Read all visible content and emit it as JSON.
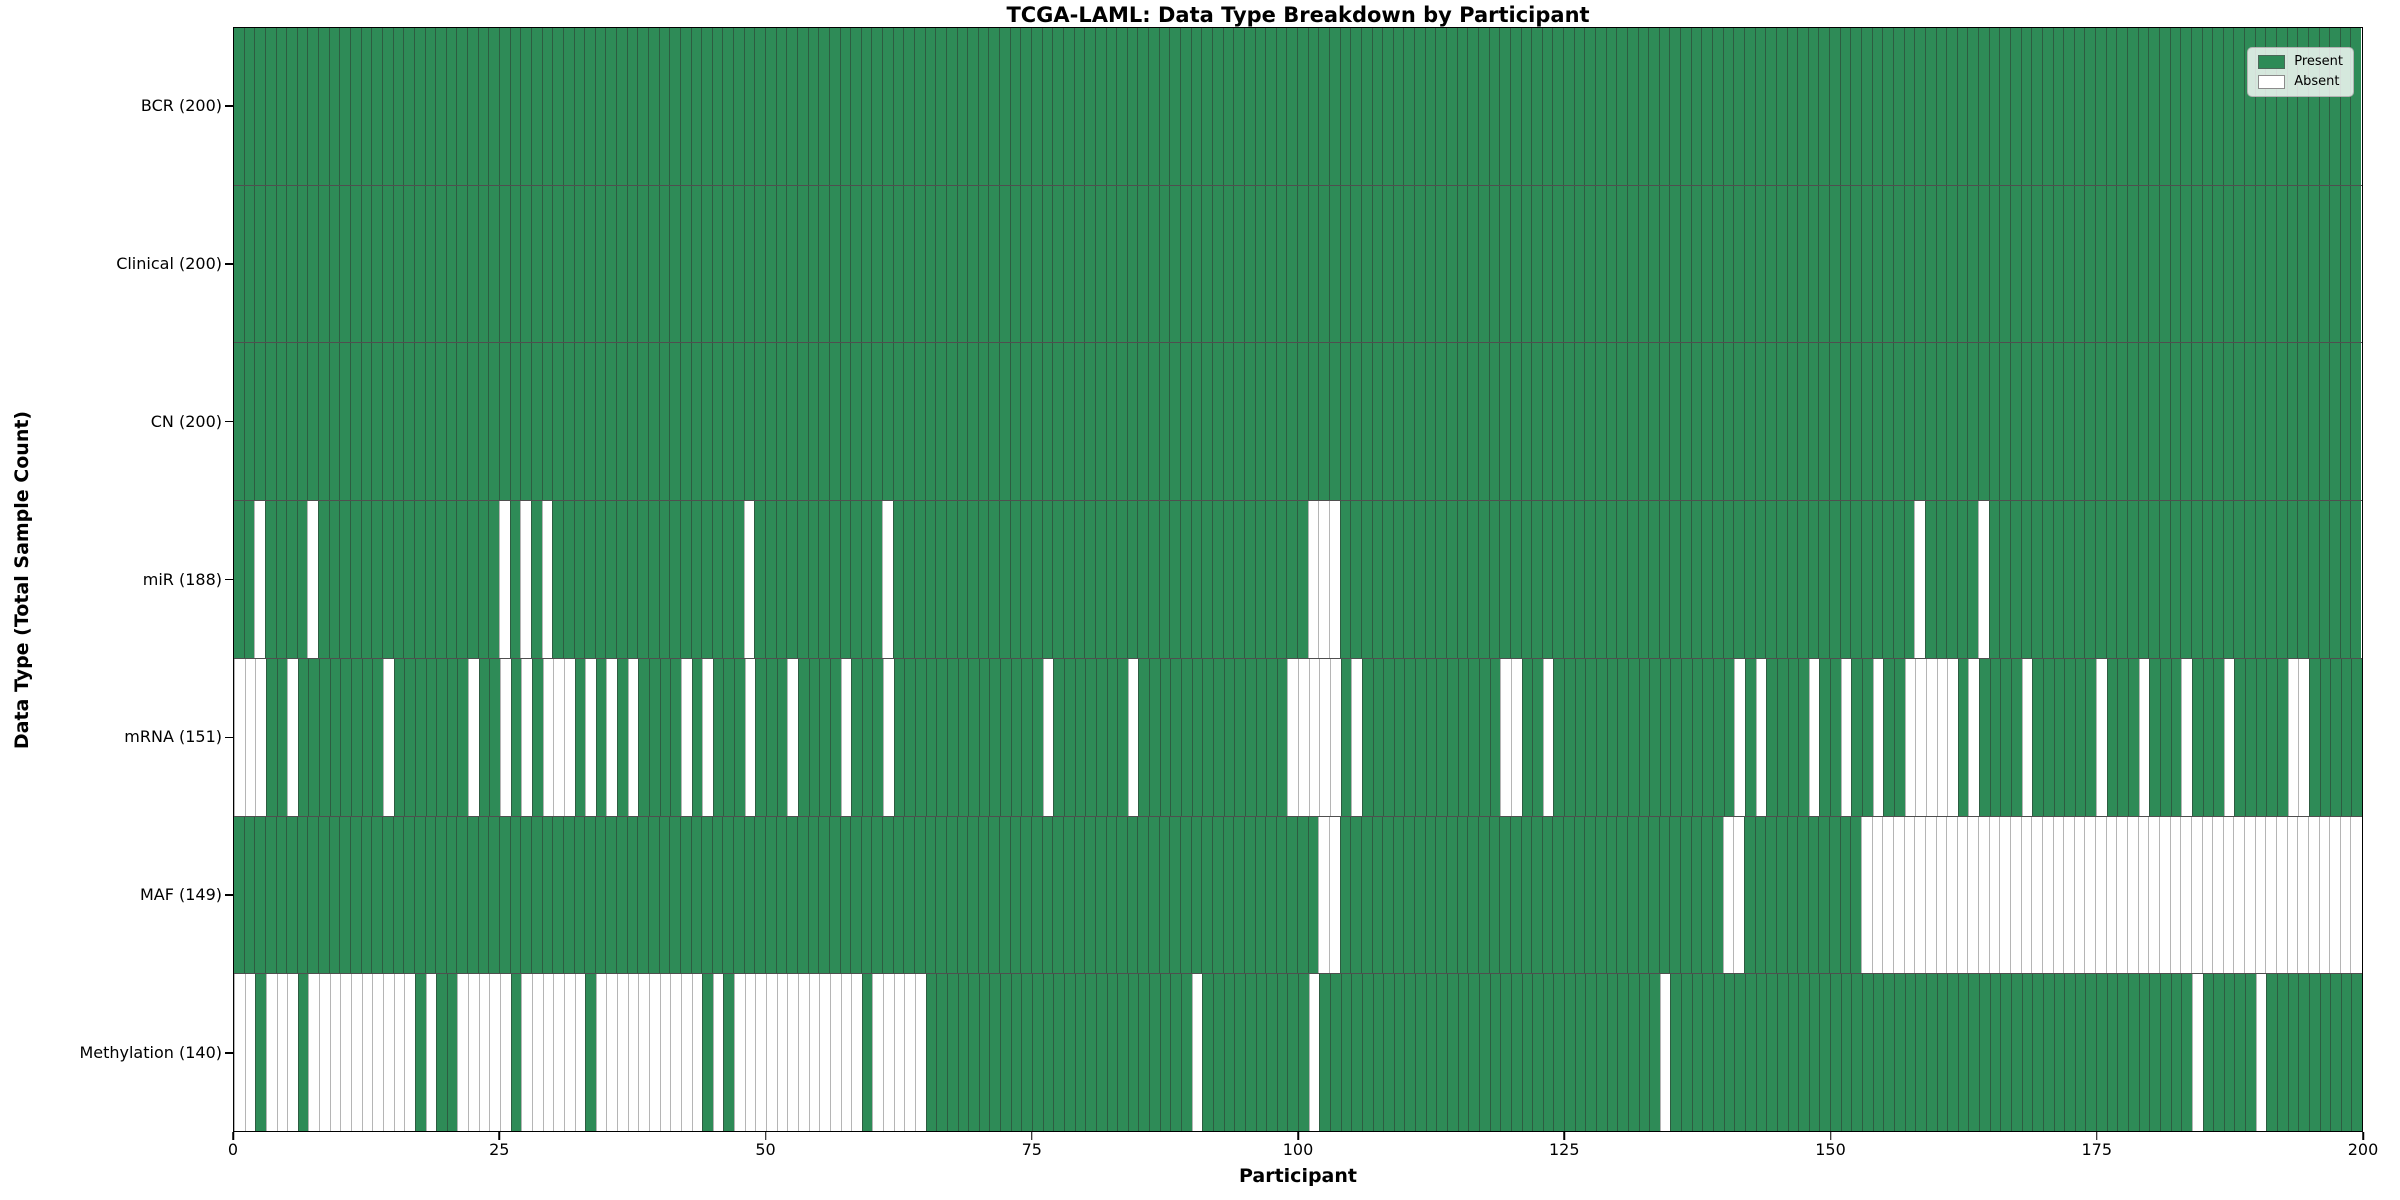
{
  "chart_data": {
    "type": "heatmap",
    "title": "TCGA-LAML: Data Type Breakdown by Participant",
    "xlabel": "Participant",
    "ylabel": "Data Type (Total Sample Count)",
    "n_participants": 200,
    "x_axis_range": [
      0,
      200
    ],
    "x_ticks": [
      0,
      25,
      50,
      75,
      100,
      125,
      150,
      175,
      200
    ],
    "grid": "cell-borders",
    "colors": {
      "present": "#2e8b57",
      "absent": "#ffffff"
    },
    "legend": {
      "position": "upper-right",
      "entries": [
        {
          "label": "Present",
          "color": "#2e8b57"
        },
        {
          "label": "Absent",
          "color": "#ffffff"
        }
      ]
    },
    "rows": [
      {
        "label": "BCR (200)",
        "name": "BCR",
        "present_count": 200,
        "absent_participants": []
      },
      {
        "label": "Clinical (200)",
        "name": "Clinical",
        "present_count": 200,
        "absent_participants": []
      },
      {
        "label": "CN (200)",
        "name": "CN",
        "present_count": 200,
        "absent_participants": []
      },
      {
        "label": "miR (188)",
        "name": "miR",
        "present_count": 188,
        "absent_participants": [
          2,
          7,
          25,
          27,
          29,
          48,
          61,
          101,
          102,
          103,
          158,
          164
        ]
      },
      {
        "label": "mRNA (151)",
        "name": "mRNA",
        "present_count": 151,
        "absent_participants": [
          0,
          1,
          2,
          5,
          14,
          22,
          25,
          27,
          29,
          30,
          31,
          33,
          35,
          37,
          42,
          44,
          48,
          52,
          57,
          61,
          76,
          84,
          99,
          100,
          101,
          102,
          103,
          105,
          119,
          120,
          123,
          141,
          143,
          148,
          151,
          154,
          157,
          158,
          159,
          160,
          161,
          163,
          168,
          175,
          179,
          183,
          187,
          193,
          194
        ]
      },
      {
        "label": "MAF (149)",
        "name": "MAF",
        "present_count": 149,
        "absent_participants": [
          102,
          103,
          140,
          141,
          153,
          154,
          155,
          156,
          157,
          158,
          159,
          160,
          161,
          162,
          163,
          164,
          165,
          166,
          167,
          168,
          169,
          170,
          171,
          172,
          173,
          174,
          175,
          176,
          177,
          178,
          179,
          180,
          181,
          182,
          183,
          184,
          185,
          186,
          187,
          188,
          189,
          190,
          191,
          192,
          193,
          194,
          195,
          196,
          197,
          198,
          199
        ]
      },
      {
        "label": "Methylation (140)",
        "name": "Methylation",
        "present_count": 140,
        "absent_participants": [
          0,
          1,
          3,
          4,
          5,
          7,
          8,
          9,
          10,
          11,
          12,
          13,
          14,
          15,
          16,
          18,
          21,
          22,
          23,
          24,
          25,
          27,
          28,
          29,
          30,
          31,
          32,
          34,
          35,
          36,
          37,
          38,
          39,
          40,
          41,
          42,
          43,
          45,
          47,
          48,
          49,
          50,
          51,
          52,
          53,
          54,
          55,
          56,
          57,
          58,
          60,
          61,
          62,
          63,
          64,
          90,
          101,
          134,
          184,
          190
        ]
      }
    ]
  }
}
